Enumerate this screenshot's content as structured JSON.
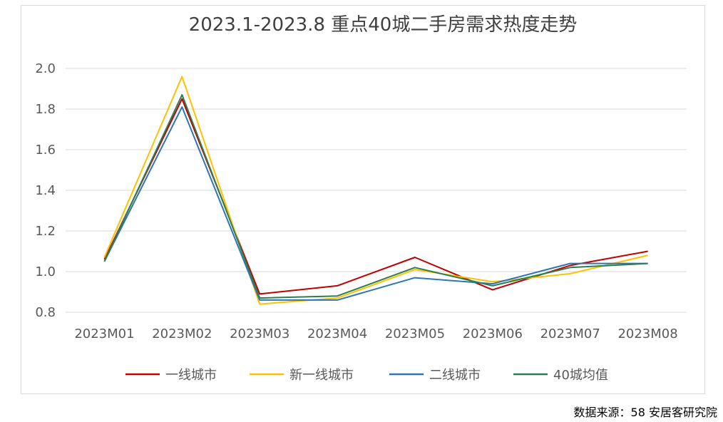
{
  "chart_data": {
    "type": "line",
    "title": "2023.1-2023.8 重点40城二手房需求热度走势",
    "categories": [
      "2023M01",
      "2023M02",
      "2023M03",
      "2023M04",
      "2023M05",
      "2023M06",
      "2023M07",
      "2023M08"
    ],
    "ylim": [
      0.8,
      2.0
    ],
    "yticks": [
      "2.0",
      "1.8",
      "1.6",
      "1.4",
      "1.2",
      "1.0",
      "0.8"
    ],
    "grid": true,
    "legend": "bottom",
    "series": [
      {
        "name": "一线城市",
        "color": "#C00000",
        "values": [
          1.06,
          1.85,
          0.89,
          0.93,
          1.07,
          0.91,
          1.03,
          1.1
        ]
      },
      {
        "name": "新一线城市",
        "color": "#FFC000",
        "values": [
          1.07,
          1.96,
          0.84,
          0.87,
          1.01,
          0.95,
          0.99,
          1.08
        ]
      },
      {
        "name": "二线城市",
        "color": "#2E75B6",
        "values": [
          1.05,
          1.81,
          0.86,
          0.86,
          0.97,
          0.94,
          1.04,
          1.04
        ]
      },
      {
        "name": "40城均值",
        "color": "#2E7D4F",
        "values": [
          1.05,
          1.87,
          0.87,
          0.88,
          1.02,
          0.93,
          1.02,
          1.04
        ]
      }
    ]
  },
  "source": "数据来源：58 安居客研究院"
}
